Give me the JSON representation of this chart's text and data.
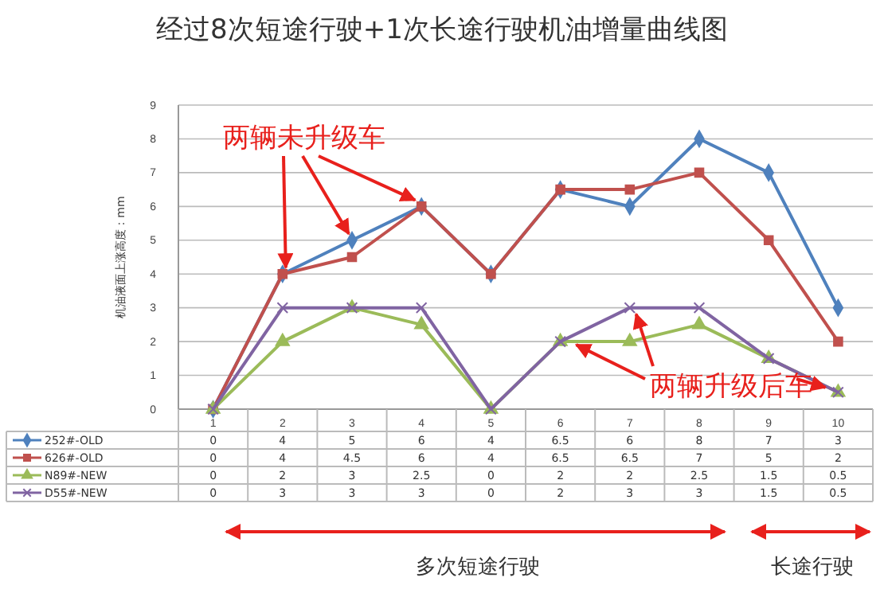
{
  "chart_data": {
    "type": "line",
    "title": "经过8次短途行驶+1次长途行驶机油增量曲线图",
    "ylabel": "机油液面上涨高度：mm",
    "categories": [
      "1",
      "2",
      "3",
      "4",
      "5",
      "6",
      "7",
      "8",
      "9",
      "10"
    ],
    "series": [
      {
        "name": "252#-OLD",
        "color": "#4f81bd",
        "marker": "diamond",
        "values": [
          0,
          4,
          5,
          6,
          4,
          6.5,
          6,
          8,
          7,
          3
        ]
      },
      {
        "name": "626#-OLD",
        "color": "#c0504d",
        "marker": "square",
        "values": [
          0,
          4,
          4.5,
          6,
          4,
          6.5,
          6.5,
          7,
          5,
          2
        ]
      },
      {
        "name": "N89#-NEW",
        "color": "#9bbb59",
        "marker": "triangle",
        "values": [
          0,
          2,
          3,
          2.5,
          0,
          2,
          2,
          2.5,
          1.5,
          0.5
        ]
      },
      {
        "name": "D55#-NEW",
        "color": "#8064a2",
        "marker": "cross",
        "values": [
          0,
          3,
          3,
          3,
          0,
          2,
          3,
          3,
          1.5,
          0.5
        ]
      }
    ],
    "ylim": [
      0,
      9
    ],
    "yticks": [
      0,
      1,
      2,
      3,
      4,
      5,
      6,
      7,
      8,
      9
    ],
    "grid": "y",
    "legend": "bottom",
    "data_labels": true,
    "annotations": [
      {
        "text": "两辆未升级车",
        "x": "3",
        "y": 5
      },
      {
        "text": "两辆升级后车",
        "x": "7",
        "y": 3
      },
      "多次短途行驶",
      "长途行驶"
    ]
  }
}
